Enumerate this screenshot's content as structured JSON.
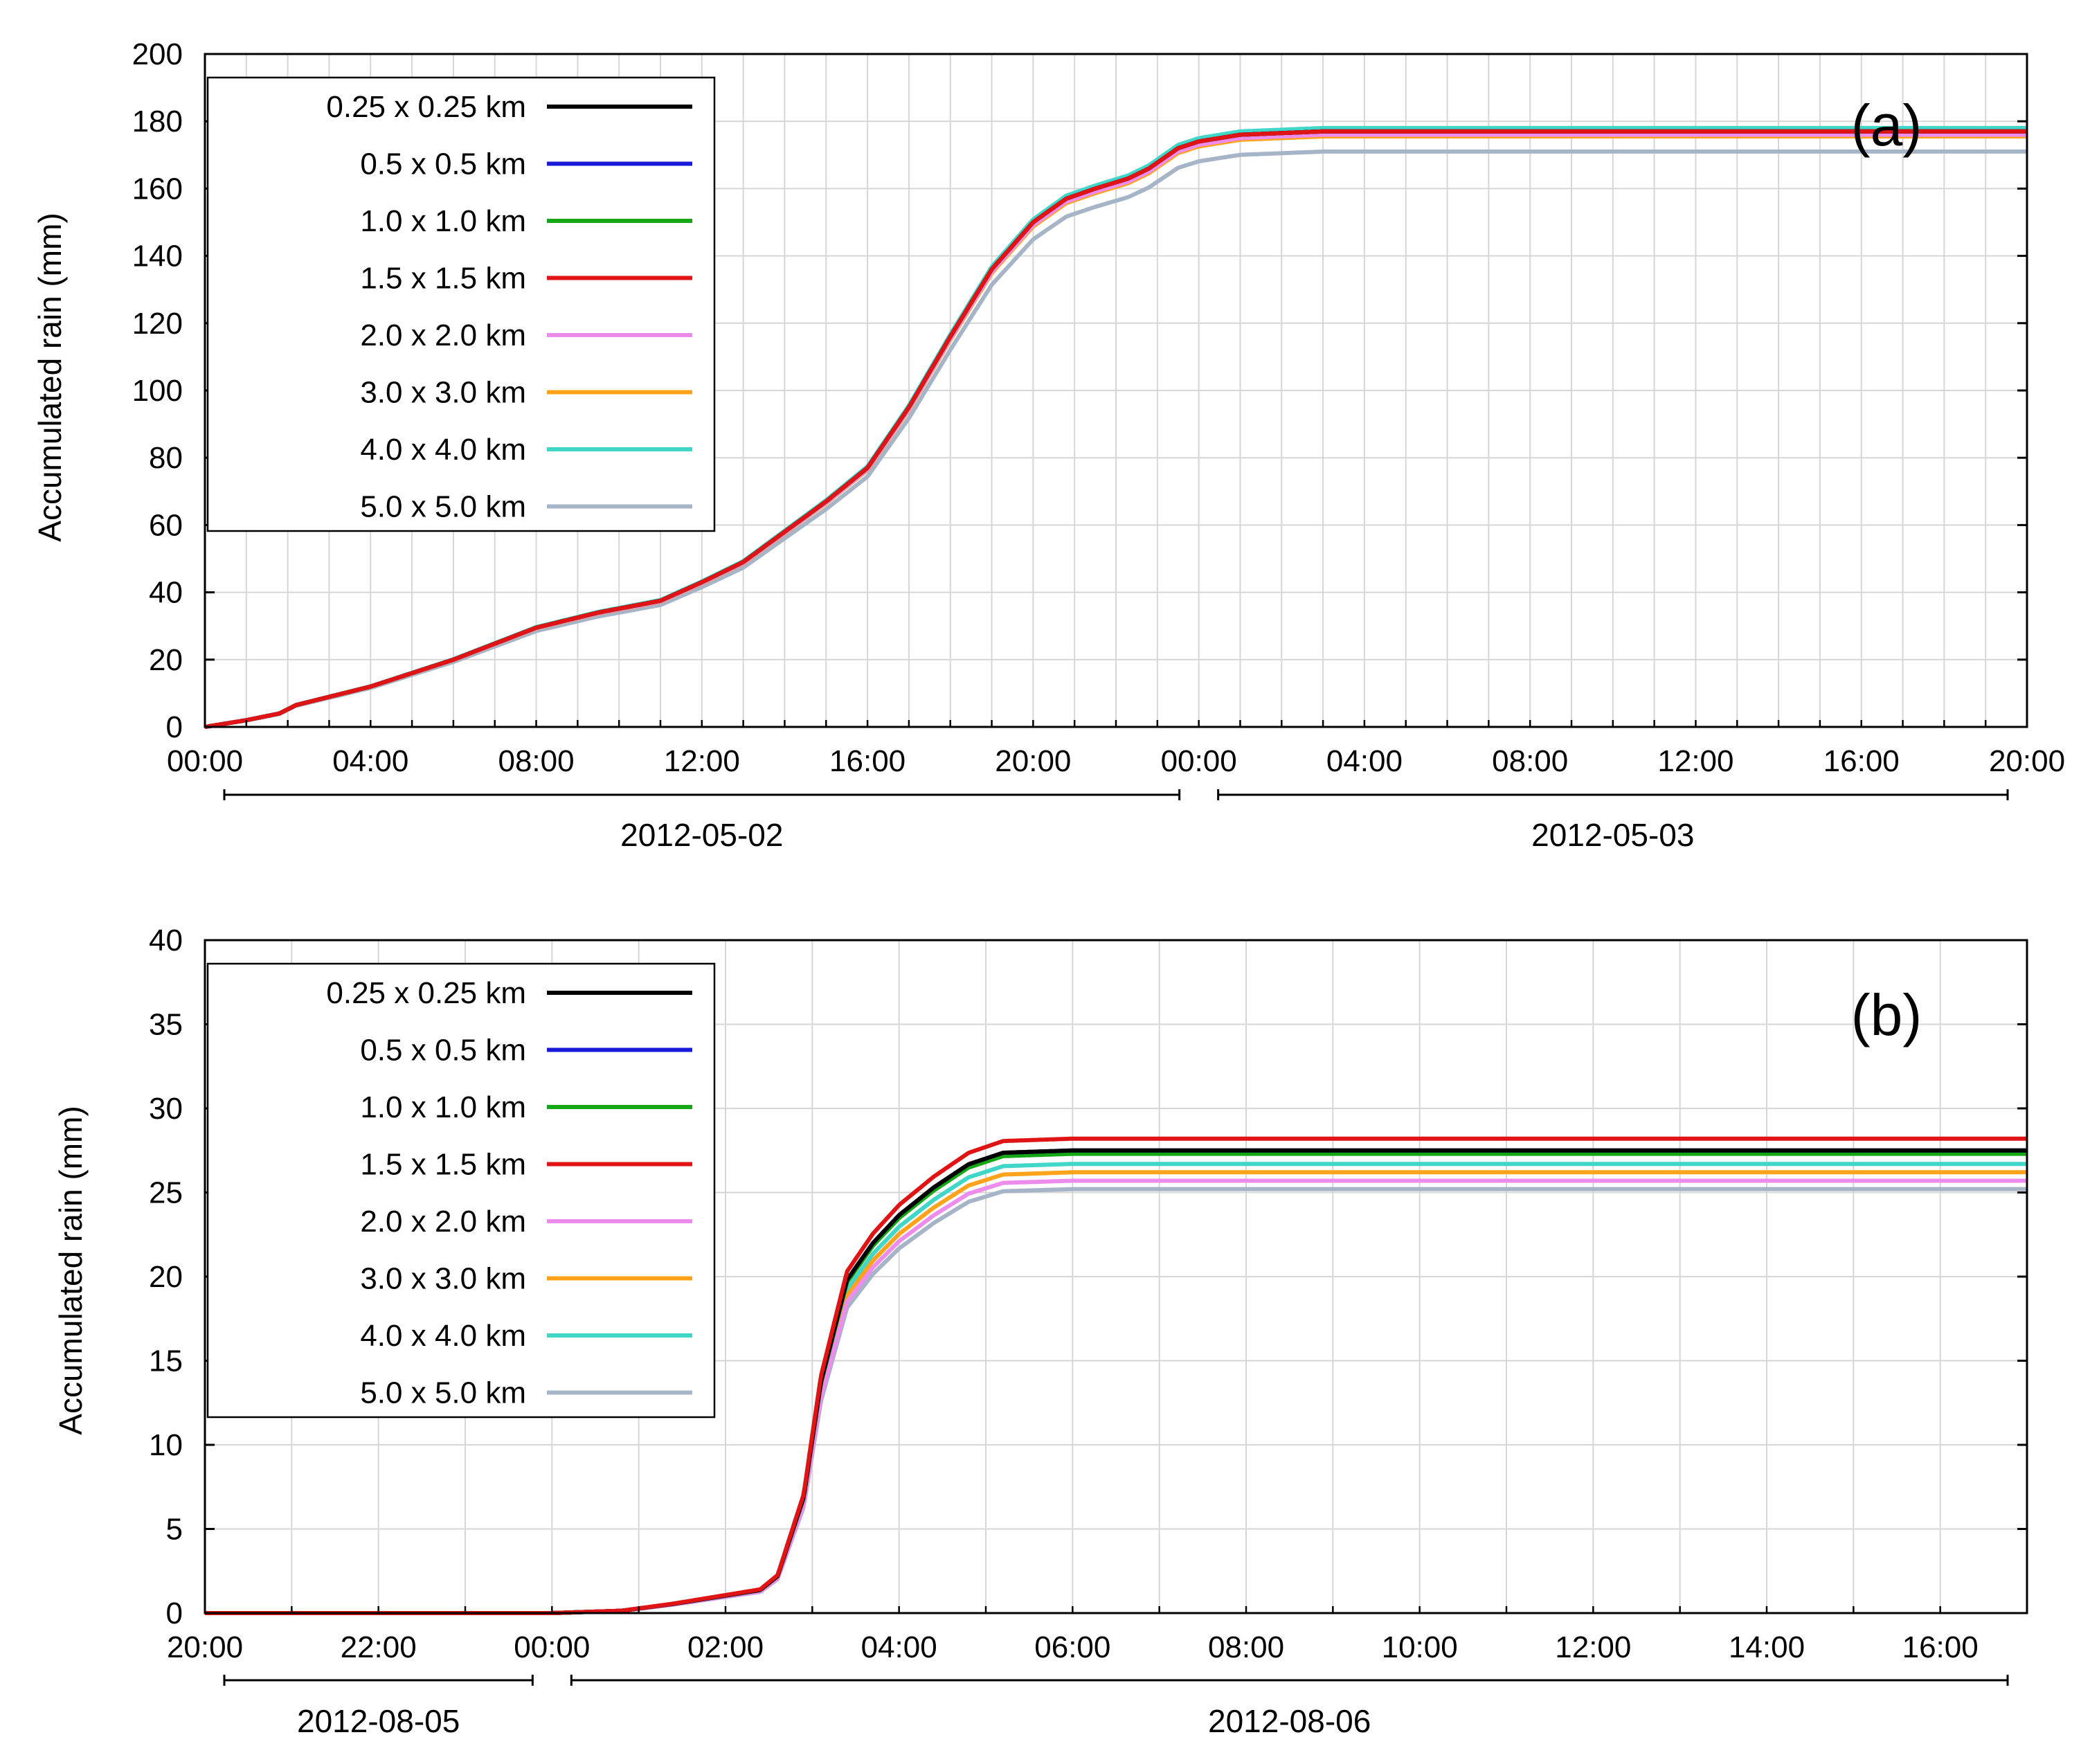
{
  "legend_entries": [
    {
      "label": "0.25 x 0.25 km",
      "color": "#000000"
    },
    {
      "label": "0.5 x 0.5 km",
      "color": "#1a1adb"
    },
    {
      "label": "1.0 x 1.0 km",
      "color": "#13a813"
    },
    {
      "label": "1.5 x 1.5 km",
      "color": "#e01414"
    },
    {
      "label": "2.0 x 2.0 km",
      "color": "#ee8cee"
    },
    {
      "label": "3.0 x 3.0 km",
      "color": "#ffa31a"
    },
    {
      "label": "4.0 x 4.0 km",
      "color": "#40d6c8"
    },
    {
      "label": "5.0 x 5.0 km",
      "color": "#a6b4c8"
    }
  ],
  "chart_data": [
    {
      "type": "line",
      "panel_label": "(a)",
      "ylabel": "Accumulated rain (mm)",
      "xlabel": "",
      "x_unit": "hours since 2012-05-02 00:00",
      "xlim": [
        0,
        44
      ],
      "ylim": [
        0,
        200
      ],
      "yticks": [
        0,
        20,
        40,
        60,
        80,
        100,
        120,
        140,
        160,
        180,
        200
      ],
      "xticks": [
        {
          "x": 0,
          "label": "00:00"
        },
        {
          "x": 4,
          "label": "04:00"
        },
        {
          "x": 8,
          "label": "08:00"
        },
        {
          "x": 12,
          "label": "12:00"
        },
        {
          "x": 16,
          "label": "16:00"
        },
        {
          "x": 20,
          "label": "20:00"
        },
        {
          "x": 24,
          "label": "00:00"
        },
        {
          "x": 28,
          "label": "04:00"
        },
        {
          "x": 32,
          "label": "08:00"
        },
        {
          "x": 36,
          "label": "12:00"
        },
        {
          "x": 40,
          "label": "16:00"
        },
        {
          "x": 44,
          "label": "20:00"
        }
      ],
      "date_spans": [
        {
          "label": "2012-05-02",
          "start": 0,
          "end": 24
        },
        {
          "label": "2012-05-03",
          "start": 24,
          "end": 44
        }
      ],
      "grid": true,
      "legend_position": "top-left",
      "base_curve": {
        "x": [
          0,
          1,
          1.8,
          2.2,
          4,
          6,
          8,
          9.5,
          11,
          12,
          13,
          14,
          15,
          16,
          17,
          18,
          19,
          20,
          20.8,
          21.5,
          22.3,
          22.8,
          23.5,
          24,
          25,
          27,
          44
        ],
        "y": [
          0,
          2,
          4,
          6.5,
          12,
          20,
          29.5,
          34,
          37.5,
          43,
          49,
          58,
          67,
          77,
          95,
          116,
          136,
          150,
          157,
          160,
          163,
          166,
          172,
          174,
          176,
          177,
          177
        ]
      },
      "series": [
        {
          "name": "0.25 x 0.25 km",
          "final": 177
        },
        {
          "name": "0.5 x 0.5 km",
          "final": 177
        },
        {
          "name": "1.0 x 1.0 km",
          "final": 177
        },
        {
          "name": "1.5 x 1.5 km",
          "final": 177
        },
        {
          "name": "2.0 x 2.0 km",
          "final": 176
        },
        {
          "name": "3.0 x 3.0 km",
          "final": 175.5
        },
        {
          "name": "4.0 x 4.0 km",
          "final": 178
        },
        {
          "name": "5.0 x 5.0 km",
          "final": 171
        }
      ]
    },
    {
      "type": "line",
      "panel_label": "(b)",
      "ylabel": "Accumulated rain (mm)",
      "xlabel": "",
      "x_unit": "hours since 2012-08-05 20:00",
      "xlim": [
        0,
        21
      ],
      "ylim": [
        0,
        40
      ],
      "yticks": [
        0,
        5,
        10,
        15,
        20,
        25,
        30,
        35,
        40
      ],
      "xticks": [
        {
          "x": 0,
          "label": "20:00"
        },
        {
          "x": 2,
          "label": "22:00"
        },
        {
          "x": 4,
          "label": "00:00"
        },
        {
          "x": 6,
          "label": "02:00"
        },
        {
          "x": 8,
          "label": "04:00"
        },
        {
          "x": 10,
          "label": "06:00"
        },
        {
          "x": 12,
          "label": "08:00"
        },
        {
          "x": 14,
          "label": "10:00"
        },
        {
          "x": 16,
          "label": "12:00"
        },
        {
          "x": 18,
          "label": "14:00"
        },
        {
          "x": 20,
          "label": "16:00"
        }
      ],
      "date_spans": [
        {
          "label": "2012-08-05",
          "start": 0,
          "end": 4
        },
        {
          "label": "2012-08-06",
          "start": 4,
          "end": 21
        }
      ],
      "grid": true,
      "legend_position": "top-left",
      "base_curve": {
        "x": [
          0,
          4,
          4.8,
          5.4,
          6.4,
          6.6,
          6.9,
          7.1,
          7.4,
          7.7,
          8.0,
          8.4,
          8.8,
          9.2,
          10,
          21
        ],
        "y": [
          0,
          0,
          0.005,
          0.02,
          0.05,
          0.08,
          0.25,
          0.5,
          0.72,
          0.8,
          0.86,
          0.92,
          0.97,
          0.995,
          1,
          1
        ]
      },
      "series": [
        {
          "name": "0.25 x 0.25 km",
          "final": 27.5
        },
        {
          "name": "0.5 x 0.5 km",
          "final": 27.5
        },
        {
          "name": "1.0 x 1.0 km",
          "final": 27.3
        },
        {
          "name": "1.5 x 1.5 km",
          "final": 28.2
        },
        {
          "name": "2.0 x 2.0 km",
          "final": 25.7
        },
        {
          "name": "3.0 x 3.0 km",
          "final": 26.2
        },
        {
          "name": "4.0 x 4.0 km",
          "final": 26.7
        },
        {
          "name": "5.0 x 5.0 km",
          "final": 25.2
        }
      ]
    }
  ]
}
